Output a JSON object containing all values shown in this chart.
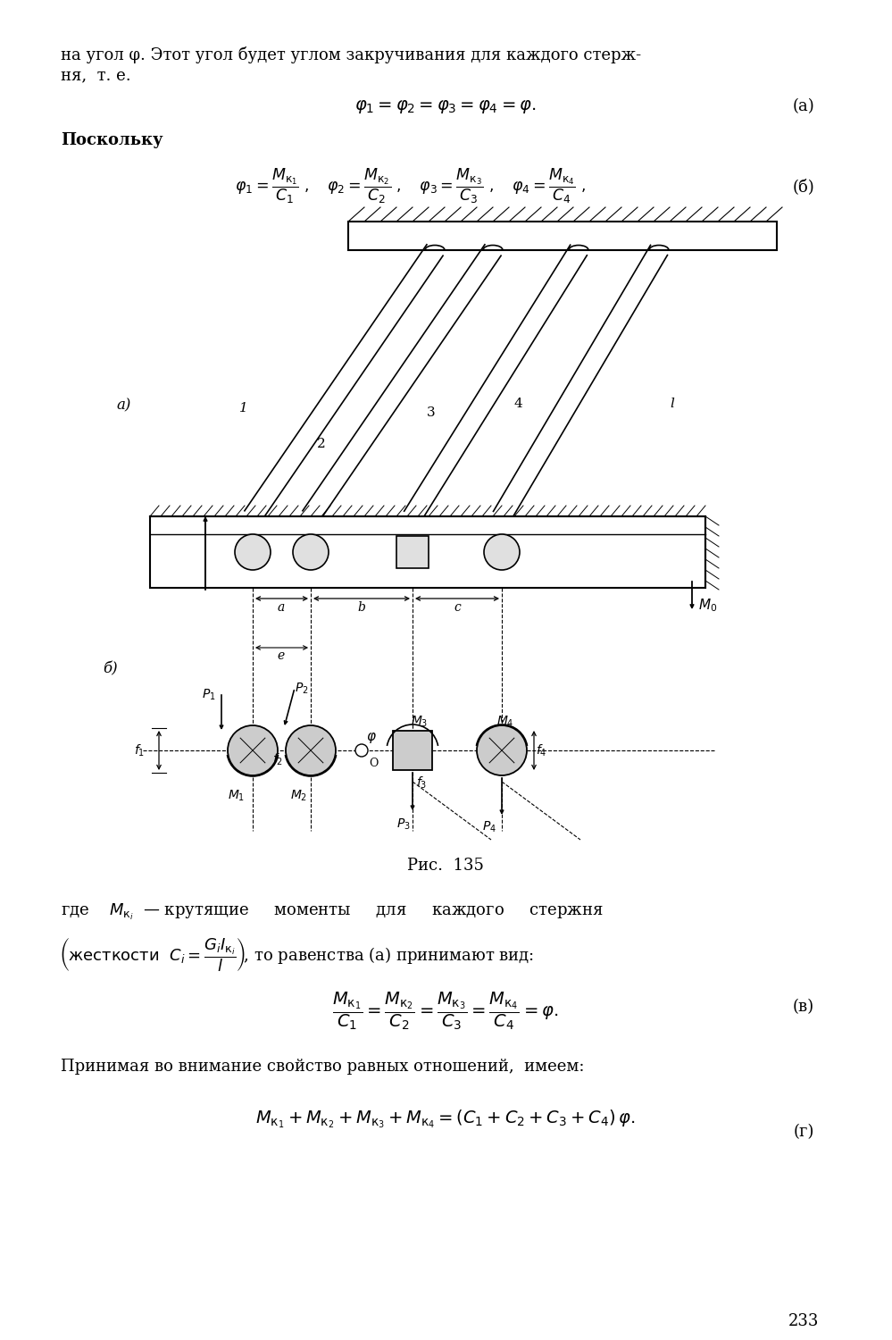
{
  "bg_color": "#ffffff",
  "text_color": "#000000",
  "page_width": 9.99,
  "page_height": 15.0,
  "top_text_line1": "на угол φ. Этот угол будет углом закручивания для каждого стерж-",
  "top_text_line2": "ня,  т. е.",
  "poskol": "Поскольку",
  "fig_caption": "Рис.  135",
  "where_line1": "где           — крутящие     моменты     для     каждого     стержня",
  "where_line2": "жесткости",
  "where_line2b": ",  то равенства (а) принимают вид:",
  "prinimayu": "Принимая во внимание свойство равных отношений,  имеем:",
  "page_num": "233"
}
